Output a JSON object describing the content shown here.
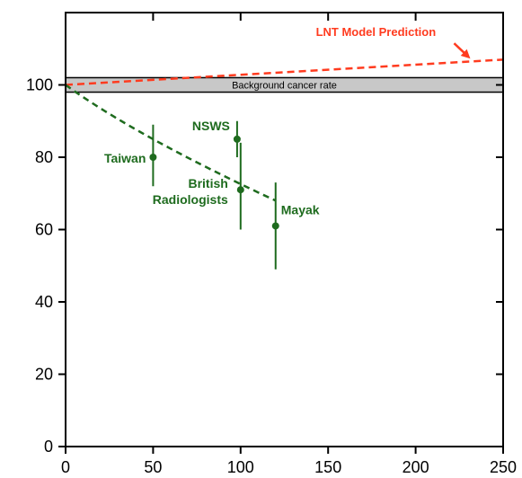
{
  "chart_data": {
    "type": "scatter",
    "title": "",
    "xlabel": "",
    "ylabel": "",
    "xlim": [
      0,
      250
    ],
    "ylim": [
      0,
      120
    ],
    "x_ticks": [
      0,
      50,
      100,
      150,
      200,
      250
    ],
    "y_ticks": [
      0,
      20,
      40,
      60,
      80,
      100
    ],
    "x_tick_labels": [
      "0",
      "50",
      "100",
      "150",
      "200",
      "250"
    ],
    "y_tick_labels": [
      "0",
      "20",
      "40",
      "60",
      "80",
      "100"
    ],
    "grid": false,
    "background_band": {
      "label": "Background cancer rate",
      "y_low": 98,
      "y_high": 102
    },
    "lnt_line": {
      "label": "LNT Model Prediction",
      "x": [
        0,
        250
      ],
      "y": [
        100,
        107
      ]
    },
    "fit_curve": {
      "x": [
        0,
        50,
        120
      ],
      "y": [
        100,
        85,
        68
      ]
    },
    "points": [
      {
        "label": "Taiwan",
        "x": 50,
        "y": 80,
        "err_low": 72,
        "err_high": 89
      },
      {
        "label": "NSWS",
        "x": 98,
        "y": 85,
        "err_low": 80,
        "err_high": 90
      },
      {
        "label": "British Radiologists",
        "label_lines": [
          "British",
          "Radiologists"
        ],
        "x": 100,
        "y": 71,
        "err_low": 60,
        "err_high": 84
      },
      {
        "label": "Mayak",
        "x": 120,
        "y": 61,
        "err_low": 49,
        "err_high": 73
      }
    ],
    "colors": {
      "lnt": "#ff3b1f",
      "data": "#1e6b1e",
      "band": "#c8c8c8"
    }
  }
}
